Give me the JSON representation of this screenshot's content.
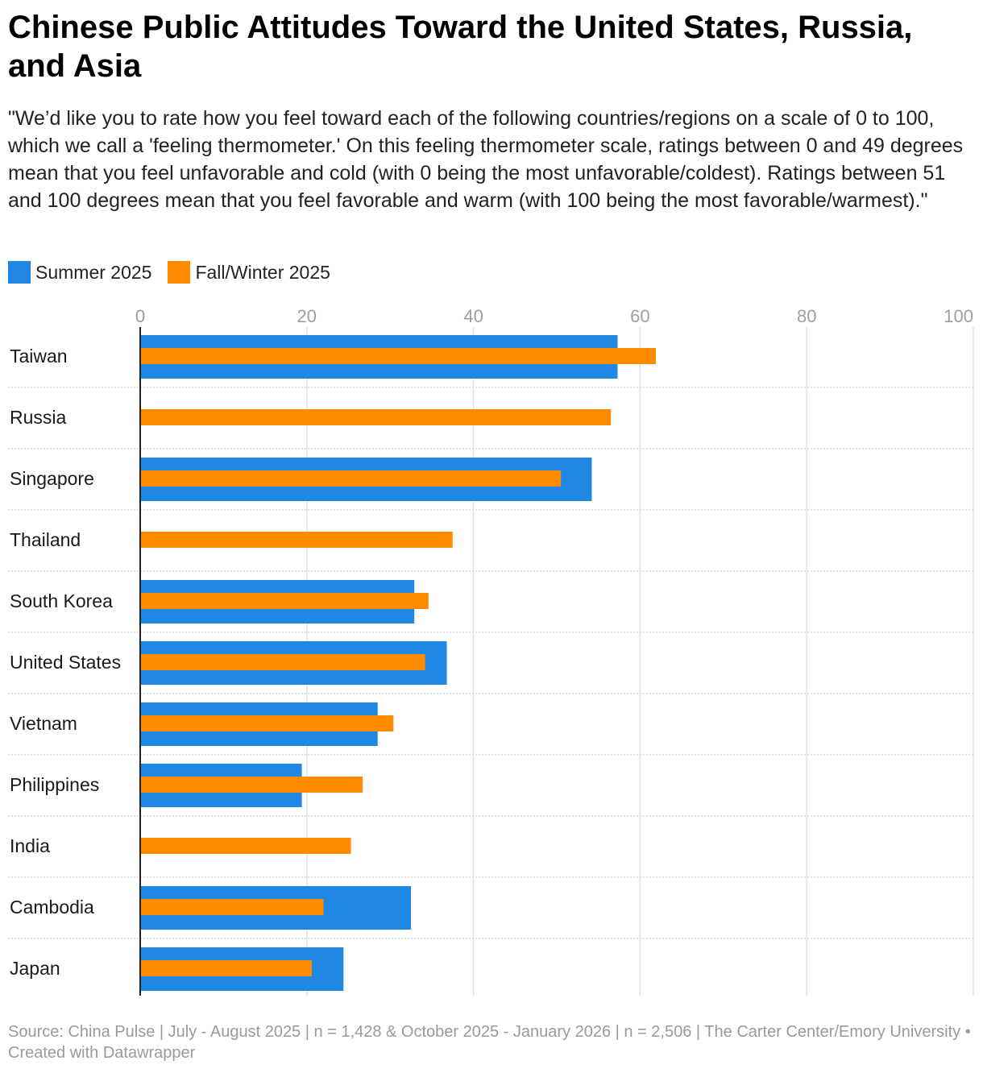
{
  "title": "Chinese Public Attitudes Toward the United States, Russia, and Asia",
  "subtitle": "\"We’d like you to rate how you feel toward each of the following countries/regions on a scale of 0 to 100, which we call a 'feeling thermometer.' On this feeling thermometer scale, ratings between 0 and 49 degrees mean that you feel unfavorable and cold (with 0 being the most unfavorable/coldest). Ratings between 51 and 100 degrees mean that you feel favorable and warm (with 100 being the most favorable/warmest).\"",
  "footer": "Source: China Pulse | July - August 2025 | n = 1,428 & October 2025 - January 2026 | n = 2,506 | The Carter Center/Emory University • Created with Datawrapper",
  "colors": {
    "summer": "#1f88e5",
    "fall": "#ff8b00"
  },
  "chart_data": {
    "type": "bar",
    "orientation": "horizontal",
    "categories": [
      "Taiwan",
      "Russia",
      "Singapore",
      "Thailand",
      "South Korea",
      "United States",
      "Vietnam",
      "Philippines",
      "India",
      "Cambodia",
      "Japan"
    ],
    "series": [
      {
        "name": "Summer 2025",
        "values": [
          57.3,
          null,
          54.2,
          null,
          32.9,
          36.8,
          28.5,
          19.4,
          null,
          32.5,
          24.4
        ]
      },
      {
        "name": "Fall/Winter 2025",
        "values": [
          61.9,
          56.5,
          50.5,
          37.5,
          34.6,
          34.2,
          30.4,
          26.7,
          25.3,
          22.0,
          20.6
        ]
      }
    ],
    "xlim": [
      0,
      100
    ],
    "xticks": [
      0,
      20,
      40,
      60,
      80,
      100
    ],
    "grid": true,
    "legend": "top-left"
  }
}
